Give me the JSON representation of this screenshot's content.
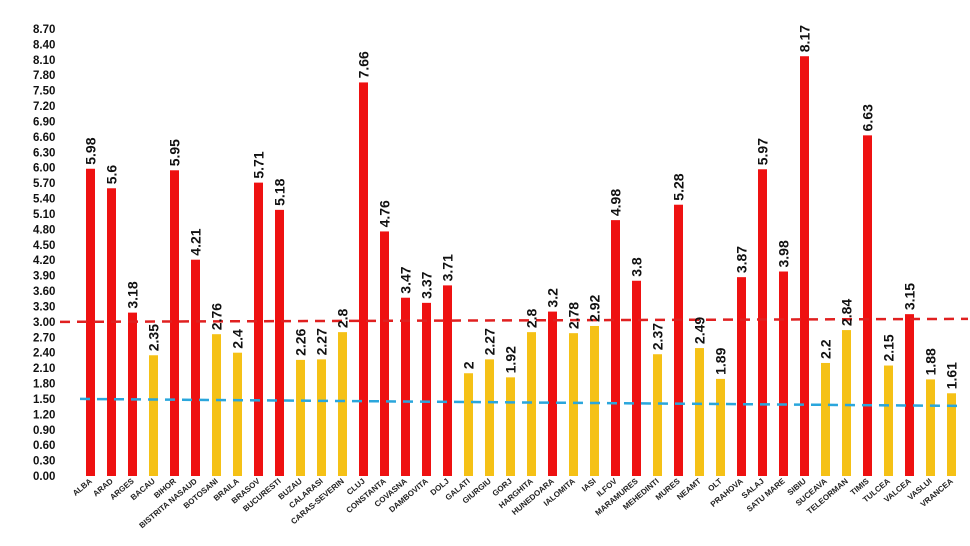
{
  "chart_data": {
    "type": "bar",
    "title": "",
    "xlabel": "",
    "ylabel": "",
    "ylim": [
      0,
      8.7
    ],
    "yticks": [
      "0.00",
      "0.30",
      "0.60",
      "0.90",
      "1.20",
      "1.50",
      "1.80",
      "2.10",
      "2.40",
      "2.70",
      "3.00",
      "3.30",
      "3.60",
      "3.90",
      "4.20",
      "4.50",
      "4.80",
      "5.10",
      "5.40",
      "5.70",
      "6.00",
      "6.30",
      "6.60",
      "6.90",
      "7.20",
      "7.50",
      "7.80",
      "8.10",
      "8.40",
      "8.70"
    ],
    "categories": [
      "ALBA",
      "ARAD",
      "ARGES",
      "BACAU",
      "BIHOR",
      "BISTRITA NASAUD",
      "BOTOSANI",
      "BRAILA",
      "BRASOV",
      "BUCURESTI",
      "BUZAU",
      "CALARASI",
      "CARAS-SEVERIN",
      "CLUJ",
      "CONSTANTA",
      "COVASNA",
      "DAMBOVITA",
      "DOLJ",
      "GALATI",
      "GIURGIU",
      "GORJ",
      "HARGHITA",
      "HUNEDOARA",
      "IALOMITA",
      "IASI",
      "ILFOV",
      "MARAMURES",
      "MEHEDINTI",
      "MURES",
      "NEAMT",
      "OLT",
      "PRAHOVA",
      "SALAJ",
      "SATU MARE",
      "SIBIU",
      "SUCEAVA",
      "TELEORMAN",
      "TIMIS",
      "TULCEA",
      "VALCEA",
      "VASLUI",
      "VRANCEA"
    ],
    "values": [
      5.98,
      5.6,
      3.18,
      2.35,
      5.95,
      4.21,
      2.76,
      2.4,
      5.71,
      5.18,
      2.26,
      2.27,
      2.8,
      7.66,
      4.76,
      3.47,
      3.37,
      3.71,
      2,
      2.27,
      1.92,
      2.8,
      3.2,
      2.78,
      2.92,
      4.98,
      3.8,
      2.37,
      5.28,
      2.49,
      1.89,
      3.87,
      5.97,
      3.98,
      8.17,
      2.2,
      2.84,
      6.63,
      2.15,
      3.15,
      1.88,
      1.61
    ],
    "value_labels": [
      "5.98",
      "5.6",
      "3.18",
      "2.35",
      "5.95",
      "4.21",
      "2.76",
      "2.4",
      "5.71",
      "5.18",
      "2.26",
      "2.27",
      "2.8",
      "7.66",
      "4.76",
      "3.47",
      "3.37",
      "3.71",
      "2",
      "2.27",
      "1.92",
      "2.8",
      "3.2",
      "2.78",
      "2.92",
      "4.98",
      "3.8",
      "2.37",
      "5.28",
      "2.49",
      "1.89",
      "3.87",
      "5.97",
      "3.98",
      "8.17",
      "2.2",
      "2.84",
      "6.63",
      "2.15",
      "3.15",
      "1.88",
      "1.61"
    ],
    "threshold_high": 3.0,
    "threshold_low": 1.5,
    "colors": {
      "above_threshold": "#ee1111",
      "below_threshold": "#f5c116",
      "threshold_high_line": "#e02020",
      "threshold_low_line": "#2aa6dc"
    }
  }
}
